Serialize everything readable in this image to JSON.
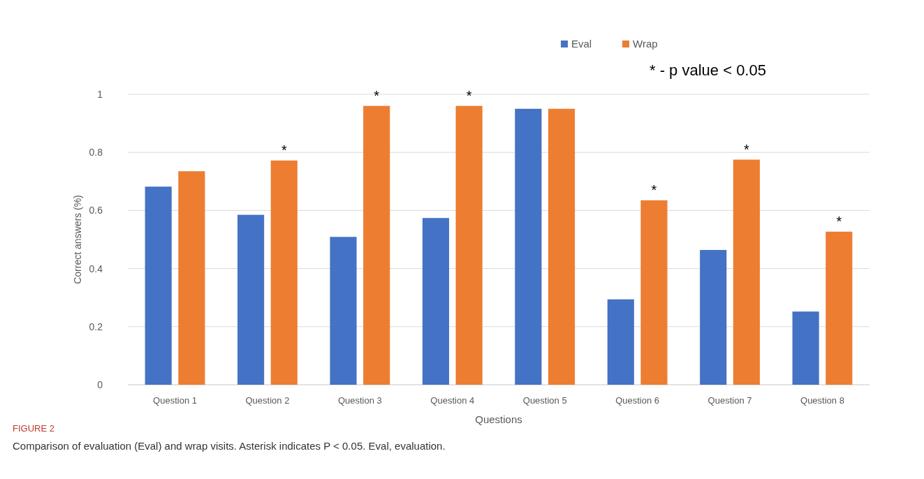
{
  "chart_data": {
    "type": "bar",
    "xlabel": "Questions",
    "ylabel": "Correct answers (%)",
    "categories": [
      "Question 1",
      "Question 2",
      "Question 3",
      "Question 4",
      "Question 5",
      "Question 6",
      "Question 7",
      "Question 8"
    ],
    "series": [
      {
        "name": "Eval",
        "color": "#4472c4",
        "values": [
          0.682,
          0.585,
          0.509,
          0.574,
          0.95,
          0.294,
          0.464,
          0.252
        ]
      },
      {
        "name": "Wrap",
        "color": "#ed7d31",
        "values": [
          0.735,
          0.772,
          0.96,
          0.96,
          0.95,
          0.635,
          0.775,
          0.527
        ]
      }
    ],
    "ylim": [
      0,
      1
    ],
    "yticks": [
      0,
      0.2,
      0.4,
      0.6,
      0.8,
      1
    ],
    "grid": "y",
    "legend": "top",
    "annotations": [
      "* - p value < 0.05",
      {
        "text": "*",
        "x": "Question 2",
        "y": 0.772
      },
      {
        "text": "*",
        "x": "Question 3",
        "y": 0.96
      },
      {
        "text": "*",
        "x": "Question 4",
        "y": 0.96
      },
      {
        "text": "*",
        "x": "Question 6",
        "y": 0.635
      },
      {
        "text": "*",
        "x": "Question 7",
        "y": 0.775
      },
      {
        "text": "*",
        "x": "Question 8",
        "y": 0.527
      },
      "FIGURE 2",
      "Comparison of evaluation (Eval) and wrap visits. Asterisk indicates P < 0.05. Eval, evaluation."
    ]
  }
}
